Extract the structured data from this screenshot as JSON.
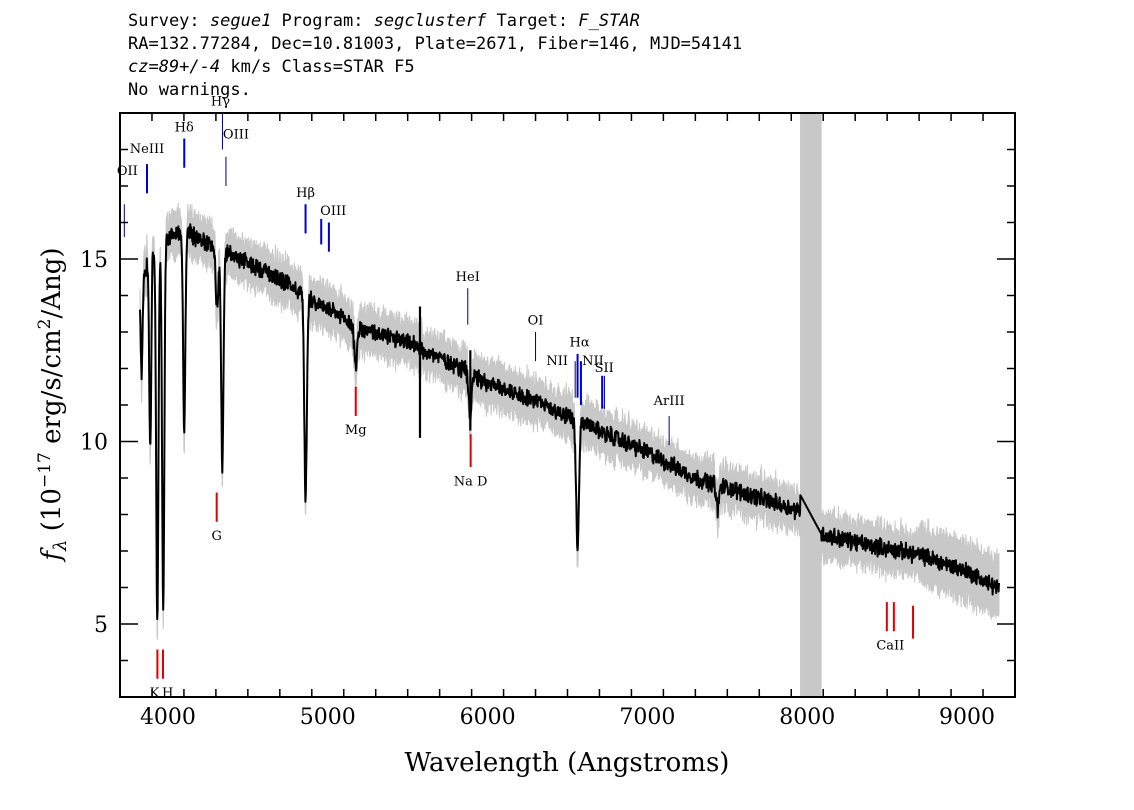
{
  "header": {
    "survey_label": "Survey: ",
    "survey": "segue1",
    "program_label": " Program: ",
    "program": "segclusterf",
    "target_label": " Target: ",
    "target": "F_STAR",
    "line2": "RA=132.77284, Dec=10.81003, Plate=2671, Fiber=146, MJD=54141",
    "cz": "cz=89+/-4",
    "line3_rest": " km/s Class=STAR F5",
    "line4": "No warnings."
  },
  "chart_data": {
    "type": "line",
    "xlabel": "Wavelength (Angstroms)",
    "ylabel_prefix": "f",
    "ylabel_sub": "λ",
    "ylabel_open": " (10",
    "ylabel_exp": "−17",
    "ylabel_mid": " erg/s/cm",
    "ylabel_exp2": "2",
    "ylabel_close": "/Ang)",
    "xlim": [
      3700,
      9300
    ],
    "ylim": [
      3,
      19
    ],
    "xticks": [
      4000,
      5000,
      6000,
      7000,
      8000,
      9000
    ],
    "xtick_labels": [
      "4000",
      "5000",
      "6000",
      "7000",
      "8000",
      "9000"
    ],
    "yticks": [
      5,
      10,
      15
    ],
    "ytick_labels": [
      "5",
      "10",
      "15"
    ],
    "masked_region": [
      7955,
      8090
    ],
    "colors": {
      "spectrum": "#000000",
      "error_band": "#c8c8c8",
      "emission": "#0000cc",
      "absorption": "#dd0000",
      "mask": "#c8c8c8"
    },
    "continuum": {
      "x": [
        3825,
        3900,
        4000,
        4100,
        4200,
        4400,
        4600,
        4800,
        5000,
        5200,
        5500,
        5800,
        6000,
        6200,
        6500,
        6800,
        7000,
        7300,
        7600,
        7950,
        8100,
        8400,
        8700,
        9000,
        9200
      ],
      "y": [
        14.2,
        15.3,
        15.6,
        15.8,
        15.5,
        15.1,
        14.7,
        14.2,
        13.6,
        13.1,
        12.7,
        12.1,
        11.6,
        11.3,
        10.7,
        10.1,
        9.7,
        9.0,
        8.6,
        8.1,
        7.45,
        7.15,
        6.9,
        6.45,
        5.95
      ]
    },
    "absorption_features": [
      {
        "center": 3835,
        "depth": 2.5,
        "width": 6
      },
      {
        "center": 3889,
        "depth": 5.5,
        "width": 6
      },
      {
        "center": 3933,
        "depth": 10.5,
        "width": 7
      },
      {
        "center": 3970,
        "depth": 10.0,
        "width": 7
      },
      {
        "center": 4102,
        "depth": 5.5,
        "width": 7
      },
      {
        "center": 4307,
        "depth": 1.6,
        "width": 8
      },
      {
        "center": 4340,
        "depth": 6.0,
        "width": 7
      },
      {
        "center": 4861,
        "depth": 5.5,
        "width": 8
      },
      {
        "center": 5175,
        "depth": 1.0,
        "width": 10
      },
      {
        "center": 5890,
        "depth": 1.2,
        "width": 8
      },
      {
        "center": 6563,
        "depth": 3.5,
        "width": 9
      },
      {
        "center": 7440,
        "depth": 0.7,
        "width": 8
      }
    ],
    "spikes": [
      {
        "center": 5577,
        "y_top": 13.7,
        "y_bottom": 10.1
      },
      {
        "center": 5892,
        "y_top": 12.5,
        "y_bottom": 10.3
      }
    ],
    "line_markers": [
      {
        "label": "OII",
        "x": 3727,
        "kind": "emission",
        "y0": 16.5,
        "y1": 15.6,
        "label_y": 17.3,
        "color": "#000066"
      },
      {
        "label": "NeIII",
        "x": 3869,
        "kind": "emission",
        "y0": 17.6,
        "y1": 16.8,
        "label_y": 17.9
      },
      {
        "label": "Hδ",
        "x": 4102,
        "kind": "emission",
        "y0": 18.3,
        "y1": 17.5,
        "label_y": 18.5
      },
      {
        "label": "Hγ",
        "x": 4341,
        "kind": "emission",
        "y0": 19.0,
        "y1": 18.0,
        "label_y": 19.2,
        "color": "#000066"
      },
      {
        "label": "OIII",
        "x": 4363,
        "kind": "emission",
        "y0": 17.8,
        "y1": 17.0,
        "label_y": 18.3,
        "color": "#000066"
      },
      {
        "label": "Hβ",
        "x": 4861,
        "kind": "emission",
        "y0": 16.5,
        "y1": 15.7,
        "label_y": 16.7
      },
      {
        "label": "OIII",
        "x": 4959,
        "kind": "emission",
        "y0": 16.1,
        "y1": 15.4,
        "label_y": 16.2
      },
      {
        "label": "OIII",
        "x": 5007,
        "kind": "emission",
        "y0": 16.0,
        "y1": 15.2,
        "label_y": 16.2,
        "nolabel": true
      },
      {
        "label": "HeI",
        "x": 5876,
        "kind": "emission",
        "y0": 14.2,
        "y1": 13.2,
        "label_y": 14.4,
        "color": "#000066"
      },
      {
        "label": "OI",
        "x": 6300,
        "kind": "emission",
        "y0": 13.0,
        "y1": 12.2,
        "label_y": 13.2,
        "color": "#000066"
      },
      {
        "label": "NII",
        "x": 6548,
        "kind": "emission",
        "y0": 12.2,
        "y1": 11.2,
        "label_y": 12.1,
        "color": "#000066"
      },
      {
        "label": "Hα",
        "x": 6563,
        "kind": "emission",
        "y0": 12.4,
        "y1": 11.2,
        "label_y": 12.6
      },
      {
        "label": "NII",
        "x": 6584,
        "kind": "emission",
        "y0": 12.2,
        "y1": 11.0,
        "label_y": 12.1
      },
      {
        "label": "SII",
        "x": 6717,
        "kind": "emission",
        "y0": 11.8,
        "y1": 10.9,
        "label_y": 11.9
      },
      {
        "label": "SII",
        "x": 6731,
        "kind": "emission",
        "y0": 11.8,
        "y1": 10.9,
        "label_y": 11.9,
        "nolabel": true,
        "color": "#000066"
      },
      {
        "label": "ArIII",
        "x": 7136,
        "kind": "emission",
        "y0": 10.7,
        "y1": 9.9,
        "label_y": 11.0,
        "color": "#000066"
      },
      {
        "label": "K",
        "x": 3934,
        "kind": "absorption",
        "y0": 4.3,
        "y1": 3.5,
        "label_y": 3.0
      },
      {
        "label": "H",
        "x": 3969,
        "kind": "absorption",
        "y0": 4.3,
        "y1": 3.5,
        "label_y": 3.0
      },
      {
        "label": "G",
        "x": 4305,
        "kind": "absorption",
        "y0": 8.6,
        "y1": 7.8,
        "label_y": 7.3
      },
      {
        "label": "Mg",
        "x": 5175,
        "kind": "absorption",
        "y0": 11.5,
        "y1": 10.7,
        "label_y": 10.2
      },
      {
        "label": "Na D",
        "x": 5894,
        "kind": "absorption",
        "y0": 10.2,
        "y1": 9.3,
        "label_y": 8.8
      },
      {
        "label": "CaII",
        "x": 8498,
        "kind": "absorption",
        "y0": 5.6,
        "y1": 4.8,
        "label_y": 4.3
      },
      {
        "label": "CaII",
        "x": 8542,
        "kind": "absorption",
        "y0": 5.6,
        "y1": 4.8,
        "label_y": 4.3,
        "nolabel": true
      },
      {
        "label": "CaII",
        "x": 8662,
        "kind": "absorption",
        "y0": 5.5,
        "y1": 4.6,
        "label_y": 4.3,
        "nolabel": true
      }
    ]
  }
}
